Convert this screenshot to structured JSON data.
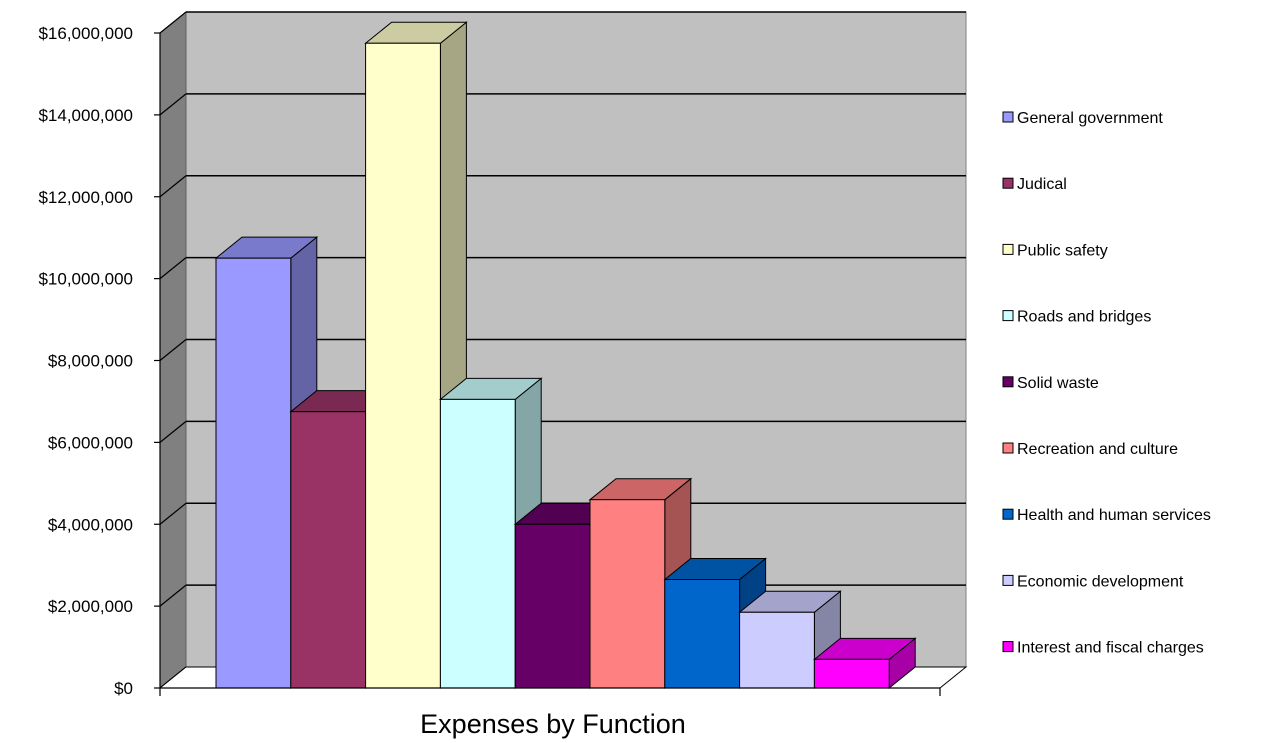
{
  "chart_data": {
    "type": "bar",
    "style": "3d-clustered-column",
    "xlabel": "Expenses by Function",
    "ylabel": "",
    "ylim": [
      0,
      16000000
    ],
    "y_ticks": [
      "$0",
      "$2,000,000",
      "$4,000,000",
      "$6,000,000",
      "$8,000,000",
      "$10,000,000",
      "$12,000,000",
      "$14,000,000",
      "$16,000,000"
    ],
    "y_tick_values": [
      0,
      2000000,
      4000000,
      6000000,
      8000000,
      10000000,
      12000000,
      14000000,
      16000000
    ],
    "grid": true,
    "legend_position": "right",
    "series": [
      {
        "name": "General government",
        "value": 10500000,
        "color": "#9999FF"
      },
      {
        "name": "Judical",
        "value": 6750000,
        "color": "#993366"
      },
      {
        "name": "Public safety",
        "value": 15750000,
        "color": "#FFFFCC"
      },
      {
        "name": "Roads and bridges",
        "value": 7050000,
        "color": "#CCFFFF"
      },
      {
        "name": "Solid waste",
        "value": 4000000,
        "color": "#660066"
      },
      {
        "name": "Recreation and culture",
        "value": 4600000,
        "color": "#FF8080"
      },
      {
        "name": "Health and human services",
        "value": 2650000,
        "color": "#0066CC"
      },
      {
        "name": "Economic development",
        "value": 1850000,
        "color": "#CCCCFF"
      },
      {
        "name": "Interest and fiscal charges",
        "value": 700000,
        "color": "#FF00FF"
      }
    ]
  }
}
